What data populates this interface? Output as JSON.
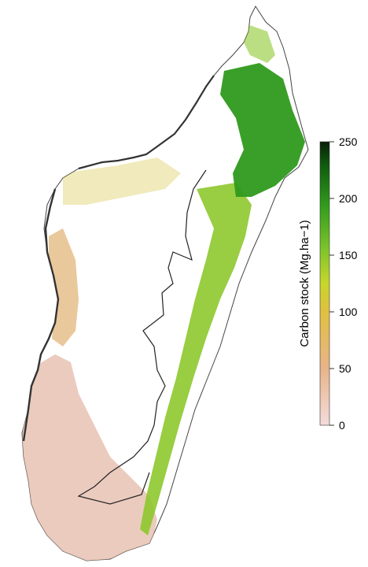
{
  "legend": {
    "title": "Carbon stock (Mg.ha−1)",
    "min": 0,
    "max": 250,
    "ticks": [
      "0",
      "50",
      "100",
      "150",
      "200",
      "250"
    ],
    "colors": [
      "#f3dcdc",
      "#e8b48a",
      "#e0c040",
      "#c8d62a",
      "#7ec42a",
      "#2f9a1c",
      "#0e5a0e",
      "#0a1f0a"
    ]
  },
  "map": {
    "region": "Madagascar",
    "zones": {
      "low": "#e8c2b3",
      "dry": "#e0b070",
      "mid": "#d4c240",
      "humid": "#8ec82e",
      "dense": "#2f9a1c",
      "outline": "#222222",
      "mangrove": "#333333"
    }
  }
}
